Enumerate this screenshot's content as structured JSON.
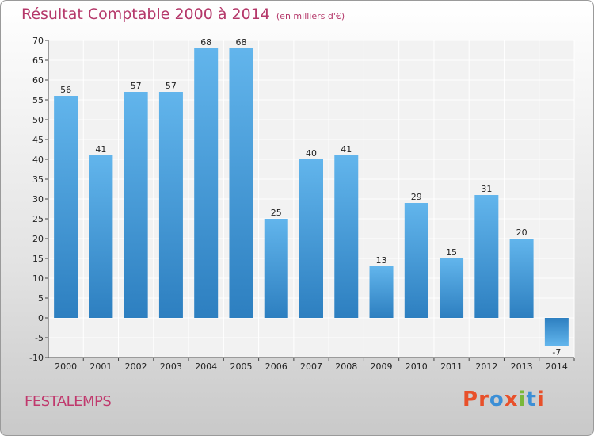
{
  "header": {
    "title": "Résultat Comptable 2000 à 2014",
    "unit": "(en milliers d'€)"
  },
  "footer": {
    "commune": "FESTALEMPS",
    "logo_text": "Proxiti"
  },
  "colors": {
    "title": "#b5386a",
    "bar_top": "#62b5ec",
    "bar_bottom": "#2d7fc0",
    "plot_bg": "#f2f2f2",
    "grid": "#ffffff",
    "logo": [
      "#e8502a",
      "#e8502a",
      "#3c8fd6",
      "#e8502a",
      "#7ab83a",
      "#3c8fd6",
      "#e8502a"
    ]
  },
  "chart_data": {
    "type": "bar",
    "title": "Résultat Comptable 2000 à 2014",
    "subtitle": "(en milliers d'€)",
    "xlabel": "",
    "ylabel": "",
    "categories": [
      "2000",
      "2001",
      "2002",
      "2003",
      "2004",
      "2005",
      "2006",
      "2007",
      "2008",
      "2009",
      "2010",
      "2011",
      "2012",
      "2013",
      "2014"
    ],
    "values": [
      56,
      41,
      57,
      57,
      68,
      68,
      25,
      40,
      41,
      13,
      29,
      15,
      31,
      20,
      -7
    ],
    "ylim": [
      -10,
      70
    ],
    "yticks": [
      -10,
      -5,
      0,
      5,
      10,
      15,
      20,
      25,
      30,
      35,
      40,
      45,
      50,
      55,
      60,
      65,
      70
    ],
    "grid": true,
    "legend": "none"
  }
}
